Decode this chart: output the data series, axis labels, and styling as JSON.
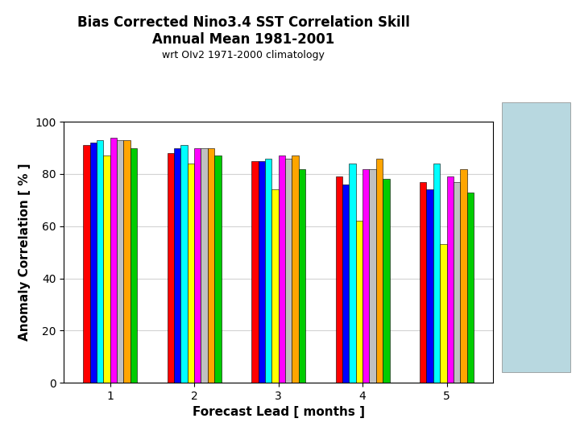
{
  "title_line1": "Bias Corrected Nino3.4 SST Correlation Skill",
  "title_line2": "Annual Mean 1981-2001",
  "subtitle": "wrt OIv2 1971-2000 climatology",
  "xlabel": "Forecast Lead [ months ]",
  "ylabel": "Anomaly Correlation [ % ]",
  "x_ticks": [
    1,
    2,
    3,
    4,
    5
  ],
  "ylim": [
    0,
    100
  ],
  "yticks": [
    0,
    20,
    40,
    60,
    80,
    100
  ],
  "bar_colors": [
    "#FF0000",
    "#0000FF",
    "#00FFFF",
    "#FFFF00",
    "#FF00FF",
    "#C0C0C0",
    "#FFA500",
    "#00CC00"
  ],
  "bar_edgecolor": "#000000",
  "values": [
    [
      91,
      92,
      93,
      87,
      94,
      93,
      93,
      90
    ],
    [
      88,
      90,
      91,
      84,
      90,
      90,
      90,
      87
    ],
    [
      85,
      85,
      86,
      74,
      87,
      86,
      87,
      82
    ],
    [
      79,
      76,
      84,
      62,
      82,
      82,
      86,
      78
    ],
    [
      77,
      74,
      84,
      53,
      79,
      77,
      82,
      73
    ]
  ],
  "bg_box_color": "#B8D8E0",
  "title_fontsize": 12,
  "subtitle_fontsize": 9,
  "axis_label_fontsize": 11,
  "tick_fontsize": 10
}
